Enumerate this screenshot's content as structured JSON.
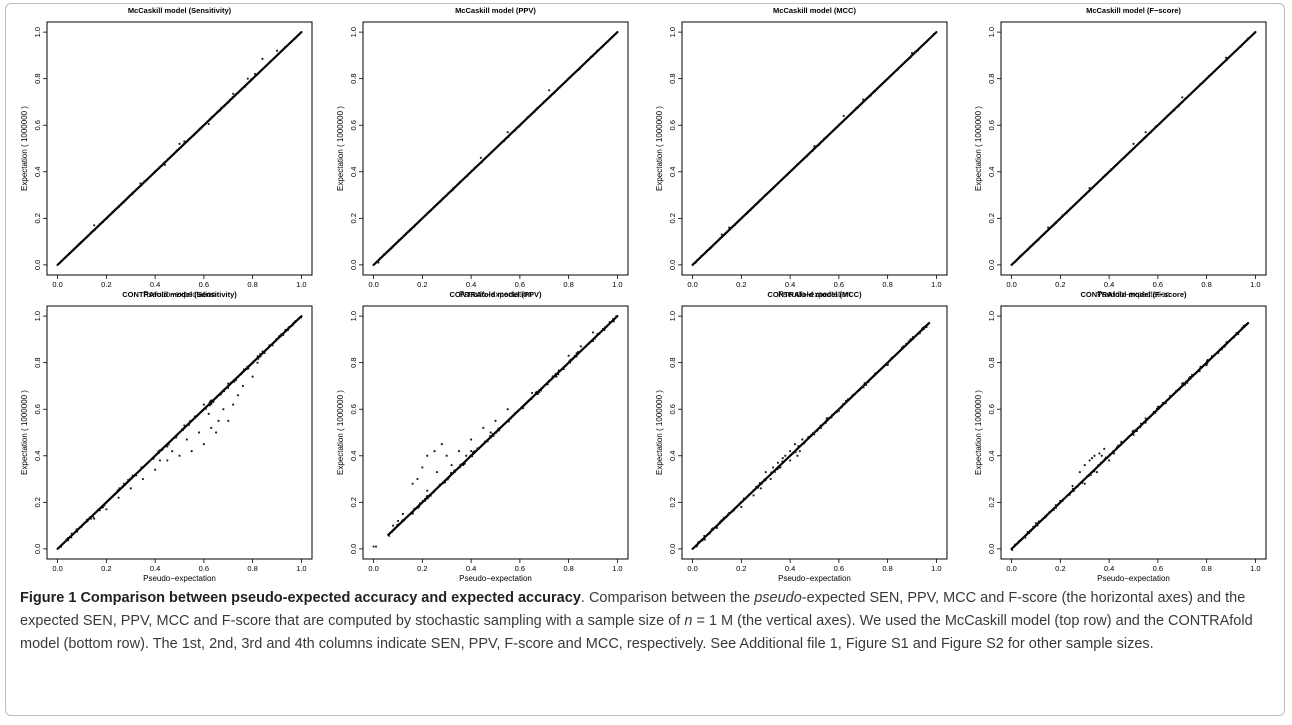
{
  "figure_label": "Figure 1",
  "figure_title": "Comparison between pseudo-expected accuracy and expected accuracy",
  "caption": {
    "p1": ". Comparison between the ",
    "italic": "pseudo",
    "p2": "-expected SEN, PPV, MCC and F-score (the horizontal axes) and the expected SEN, PPV, MCC and F-score that are computed by stochastic sampling with a sample size of ",
    "n": "n",
    "p3": " = 1 M (the vertical axes). We used the McCaskill model (top row) and the CONTRAfold model (bottom row). The 1st, 2nd, 3rd and 4th columns indicate SEN, PPV, F-score and MCC, respectively. See Additional file 1, Figure S1 and Figure S2 for other sample sizes."
  },
  "chart_data": [
    {
      "type": "scatter",
      "title": "McCaskill model (Sensitivity)",
      "xlabel": "Pseudo−expectation",
      "ylabel": "Expectation ( 1000000 )",
      "xlim": [
        0,
        1
      ],
      "ylim": [
        0,
        1
      ],
      "x_ticks": [
        "0.0",
        "0.2",
        "0.4",
        "0.6",
        "0.8",
        "1.0"
      ],
      "y_ticks": [
        "0.0",
        "0.2",
        "0.4",
        "0.6",
        "0.8",
        "1.0"
      ],
      "x_range": [
        0.0,
        1.0
      ],
      "points": [
        [
          0.72,
          0.735
        ],
        [
          0.78,
          0.8
        ],
        [
          0.84,
          0.885
        ],
        [
          0.62,
          0.605
        ],
        [
          0.5,
          0.52
        ],
        [
          0.52,
          0.53
        ],
        [
          0.9,
          0.92
        ],
        [
          0.81,
          0.82
        ],
        [
          0.44,
          0.43
        ],
        [
          0.15,
          0.17
        ],
        [
          0.34,
          0.35
        ]
      ]
    },
    {
      "type": "scatter",
      "title": "McCaskill model (PPV)",
      "xlabel": "Pseudo−expectation",
      "ylabel": "Expectation ( 1000000 )",
      "xlim": [
        0,
        1
      ],
      "ylim": [
        0,
        1
      ],
      "x_ticks": [
        "0.0",
        "0.2",
        "0.4",
        "0.6",
        "0.8",
        "1.0"
      ],
      "y_ticks": [
        "0.0",
        "0.2",
        "0.4",
        "0.6",
        "0.8",
        "1.0"
      ],
      "x_range": [
        0.0,
        1.0
      ],
      "points": [
        [
          0.02,
          0.01
        ],
        [
          0.05,
          0.05
        ],
        [
          0.44,
          0.46
        ],
        [
          0.55,
          0.57
        ],
        [
          0.72,
          0.75
        ],
        [
          0.2,
          0.2
        ],
        [
          0.12,
          0.12
        ],
        [
          0.3,
          0.3
        ]
      ]
    },
    {
      "type": "scatter",
      "title": "McCaskill model (MCC)",
      "xlabel": "Pseudo−expectation",
      "ylabel": "Expectation ( 1000000 )",
      "xlim": [
        0,
        1
      ],
      "ylim": [
        0,
        1
      ],
      "x_ticks": [
        "0.0",
        "0.2",
        "0.4",
        "0.6",
        "0.8",
        "1.0"
      ],
      "y_ticks": [
        "0.0",
        "0.2",
        "0.4",
        "0.6",
        "0.8",
        "1.0"
      ],
      "x_range": [
        0.0,
        1.0
      ],
      "points": [
        [
          0.12,
          0.13
        ],
        [
          0.15,
          0.16
        ],
        [
          0.62,
          0.64
        ],
        [
          0.7,
          0.71
        ],
        [
          0.9,
          0.91
        ],
        [
          0.5,
          0.51
        ]
      ]
    },
    {
      "type": "scatter",
      "title": "McCaskill model (F−score)",
      "xlabel": "Pseudo−expectation",
      "ylabel": "Expectation ( 1000000 )",
      "xlim": [
        0,
        1
      ],
      "ylim": [
        0,
        1
      ],
      "x_ticks": [
        "0.0",
        "0.2",
        "0.4",
        "0.6",
        "0.8",
        "1.0"
      ],
      "y_ticks": [
        "0.0",
        "0.2",
        "0.4",
        "0.6",
        "0.8",
        "1.0"
      ],
      "x_range": [
        0.0,
        1.0
      ],
      "points": [
        [
          0.15,
          0.16
        ],
        [
          0.5,
          0.52
        ],
        [
          0.55,
          0.57
        ],
        [
          0.7,
          0.72
        ],
        [
          0.88,
          0.89
        ],
        [
          0.32,
          0.33
        ]
      ]
    },
    {
      "type": "scatter",
      "title": "CONTRAfold model (Sensitivity)",
      "xlabel": "Pseudo−expectation",
      "ylabel": "Expectation ( 1000000 )",
      "xlim": [
        0,
        1
      ],
      "ylim": [
        0,
        1
      ],
      "x_ticks": [
        "0.0",
        "0.2",
        "0.4",
        "0.6",
        "0.8",
        "1.0"
      ],
      "y_ticks": [
        "0.0",
        "0.2",
        "0.4",
        "0.6",
        "0.8",
        "1.0"
      ],
      "x_range": [
        0.0,
        1.0
      ],
      "points": [
        [
          0.55,
          0.42
        ],
        [
          0.6,
          0.45
        ],
        [
          0.65,
          0.5
        ],
        [
          0.7,
          0.55
        ],
        [
          0.5,
          0.4
        ],
        [
          0.58,
          0.5
        ],
        [
          0.63,
          0.52
        ],
        [
          0.72,
          0.62
        ],
        [
          0.45,
          0.38
        ],
        [
          0.4,
          0.34
        ],
        [
          0.35,
          0.3
        ],
        [
          0.3,
          0.26
        ],
        [
          0.25,
          0.22
        ],
        [
          0.2,
          0.17
        ],
        [
          0.15,
          0.13
        ],
        [
          0.62,
          0.58
        ],
        [
          0.68,
          0.6
        ],
        [
          0.74,
          0.66
        ],
        [
          0.8,
          0.74
        ],
        [
          0.66,
          0.55
        ],
        [
          0.53,
          0.47
        ],
        [
          0.47,
          0.42
        ],
        [
          0.42,
          0.38
        ],
        [
          0.76,
          0.7
        ],
        [
          0.82,
          0.8
        ],
        [
          0.6,
          0.62
        ],
        [
          0.56,
          0.56
        ],
        [
          0.7,
          0.71
        ],
        [
          0.52,
          0.53
        ],
        [
          0.45,
          0.44
        ],
        [
          0.38,
          0.38
        ]
      ]
    },
    {
      "type": "scatter",
      "title": "CONTRAfold model (PPV)",
      "xlabel": "Pseudo−expectation",
      "ylabel": "Expectation ( 1000000 )",
      "xlim": [
        0,
        1
      ],
      "ylim": [
        0,
        1
      ],
      "x_ticks": [
        "0.0",
        "0.2",
        "0.4",
        "0.6",
        "0.8",
        "1.0"
      ],
      "y_ticks": [
        "0.0",
        "0.2",
        "0.4",
        "0.6",
        "0.8",
        "1.0"
      ],
      "x_range": [
        0.06,
        1.0
      ],
      "points": [
        [
          0.2,
          0.35
        ],
        [
          0.22,
          0.4
        ],
        [
          0.25,
          0.42
        ],
        [
          0.28,
          0.45
        ],
        [
          0.3,
          0.4
        ],
        [
          0.35,
          0.42
        ],
        [
          0.4,
          0.47
        ],
        [
          0.45,
          0.52
        ],
        [
          0.5,
          0.55
        ],
        [
          0.55,
          0.6
        ],
        [
          0.6,
          0.6
        ],
        [
          0.65,
          0.67
        ],
        [
          0.7,
          0.7
        ],
        [
          0.75,
          0.74
        ],
        [
          0.8,
          0.83
        ],
        [
          0.85,
          0.87
        ],
        [
          0.9,
          0.93
        ],
        [
          0.18,
          0.3
        ],
        [
          0.16,
          0.28
        ],
        [
          0.26,
          0.33
        ],
        [
          0.32,
          0.36
        ],
        [
          0.4,
          0.42
        ],
        [
          0.48,
          0.5
        ],
        [
          0.1,
          0.12
        ],
        [
          0.12,
          0.15
        ],
        [
          0.08,
          0.1
        ],
        [
          0.0,
          0.01
        ],
        [
          0.01,
          0.01
        ],
        [
          0.22,
          0.25
        ],
        [
          0.38,
          0.4
        ]
      ]
    },
    {
      "type": "scatter",
      "title": "CONTRAfold model (MCC)",
      "xlabel": "Pseudo−expectation",
      "ylabel": "Expectation ( 1000000 )",
      "xlim": [
        0,
        1
      ],
      "ylim": [
        0,
        1
      ],
      "x_ticks": [
        "0.0",
        "0.2",
        "0.4",
        "0.6",
        "0.8",
        "1.0"
      ],
      "y_ticks": [
        "0.0",
        "0.2",
        "0.4",
        "0.6",
        "0.8",
        "1.0"
      ],
      "x_range": [
        0.0,
        0.97
      ],
      "points": [
        [
          0.3,
          0.33
        ],
        [
          0.35,
          0.37
        ],
        [
          0.38,
          0.4
        ],
        [
          0.4,
          0.42
        ],
        [
          0.42,
          0.45
        ],
        [
          0.33,
          0.35
        ],
        [
          0.36,
          0.35
        ],
        [
          0.4,
          0.38
        ],
        [
          0.44,
          0.42
        ],
        [
          0.25,
          0.23
        ],
        [
          0.28,
          0.26
        ],
        [
          0.22,
          0.22
        ],
        [
          0.2,
          0.18
        ],
        [
          0.15,
          0.15
        ],
        [
          0.1,
          0.09
        ],
        [
          0.05,
          0.04
        ],
        [
          0.5,
          0.5
        ],
        [
          0.55,
          0.56
        ],
        [
          0.6,
          0.6
        ],
        [
          0.45,
          0.47
        ],
        [
          0.7,
          0.7
        ],
        [
          0.8,
          0.79
        ],
        [
          0.32,
          0.3
        ],
        [
          0.37,
          0.39
        ],
        [
          0.43,
          0.4
        ]
      ]
    },
    {
      "type": "scatter",
      "title": "CONTRAfold model (F−score)",
      "xlabel": "Pseudo−expectation",
      "ylabel": "Expectation ( 1000000 )",
      "xlim": [
        0,
        1
      ],
      "ylim": [
        0,
        1
      ],
      "x_ticks": [
        "0.0",
        "0.2",
        "0.4",
        "0.6",
        "0.8",
        "1.0"
      ],
      "y_ticks": [
        "0.0",
        "0.2",
        "0.4",
        "0.6",
        "0.8",
        "1.0"
      ],
      "x_range": [
        0.0,
        0.97
      ],
      "points": [
        [
          0.3,
          0.36
        ],
        [
          0.32,
          0.38
        ],
        [
          0.34,
          0.4
        ],
        [
          0.36,
          0.41
        ],
        [
          0.38,
          0.43
        ],
        [
          0.28,
          0.33
        ],
        [
          0.3,
          0.28
        ],
        [
          0.35,
          0.33
        ],
        [
          0.4,
          0.38
        ],
        [
          0.42,
          0.41
        ],
        [
          0.25,
          0.27
        ],
        [
          0.22,
          0.22
        ],
        [
          0.18,
          0.18
        ],
        [
          0.15,
          0.15
        ],
        [
          0.1,
          0.11
        ],
        [
          0.05,
          0.05
        ],
        [
          0.45,
          0.46
        ],
        [
          0.5,
          0.49
        ],
        [
          0.55,
          0.56
        ],
        [
          0.6,
          0.61
        ],
        [
          0.7,
          0.71
        ],
        [
          0.8,
          0.79
        ],
        [
          0.37,
          0.4
        ],
        [
          0.33,
          0.39
        ]
      ]
    }
  ]
}
